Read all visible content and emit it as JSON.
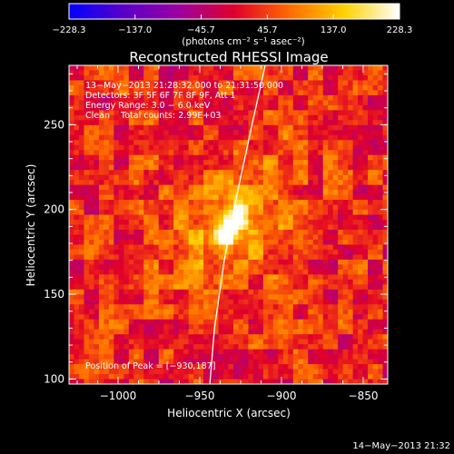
{
  "chart_data": {
    "type": "heatmap",
    "title": "Reconstructed RHESSI Image",
    "xlabel": "Heliocentric X (arcsec)",
    "ylabel": "Heliocentric Y (arcsec)",
    "xlim": [
      -1030,
      -835
    ],
    "ylim": [
      97,
      285
    ],
    "x_ticks": [
      -1000,
      -950,
      -900,
      -850
    ],
    "x_tick_labels": [
      "−1000",
      "−950",
      "−900",
      "−850"
    ],
    "y_ticks": [
      100,
      150,
      200,
      250
    ],
    "y_tick_labels": [
      "100",
      "150",
      "200",
      "250"
    ],
    "colorbar": {
      "min": -228.3,
      "max": 228.3,
      "ticks": [
        -228.3,
        -137.0,
        -45.7,
        45.7,
        137.0,
        228.3
      ],
      "tick_labels": [
        "−228.3",
        "−137.0",
        "−45.7",
        "45.7",
        "137.0",
        "228.3"
      ],
      "units": "(photons cm⁻² s⁻¹ asec⁻²)",
      "colormap": [
        "#0000ff",
        "#5a00c8",
        "#9b00a0",
        "#e0002a",
        "#ff6a00",
        "#ffd200",
        "#ffffff"
      ]
    },
    "info_lines": [
      "13−May−2013 21:28:32.000 to 21:31:50.000",
      "Detectors: 3F 5F 6F 7F 8F 9F, Att 1",
      "Energy Range: 3.0 − 6.0 keV",
      "Clean    Total counts: 2.99E+03"
    ],
    "peak_label": "Position of Peak = [−930,187]",
    "peak": {
      "x": -930,
      "y": 187,
      "value": 228.3
    },
    "source": {
      "x": -932,
      "y": 190,
      "sigma_major": 9,
      "sigma_minor": 5,
      "angle_deg": 60,
      "amplitude": 228.3
    },
    "background_level": 45,
    "limb_curve": [
      [
        -944,
        95
      ],
      [
        -941,
        130
      ],
      [
        -935,
        170
      ],
      [
        -927,
        210
      ],
      [
        -918,
        250
      ],
      [
        -910,
        285
      ]
    ],
    "timestamp": "14−May−2013 21:32",
    "colors": {
      "background": "#000000",
      "text": "#ffffff",
      "limb": "#ffffff"
    }
  }
}
